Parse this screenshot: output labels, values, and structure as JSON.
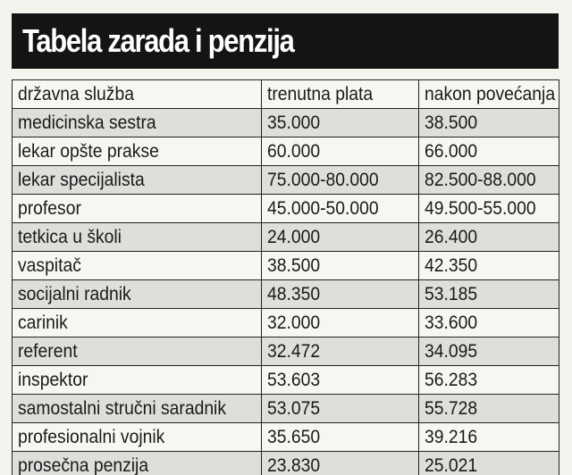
{
  "title": "Tabela zarada i penzija",
  "table": {
    "headers": [
      "državna služba",
      "trenutna plata",
      "nakon povećanja"
    ],
    "rows": [
      [
        "medicinska sestra",
        "35.000",
        "38.500"
      ],
      [
        "lekar opšte prakse",
        "60.000",
        "66.000"
      ],
      [
        "lekar specijalista",
        "75.000-80.000",
        "82.500-88.000"
      ],
      [
        "profesor",
        "45.000-50.000",
        "49.500-55.000"
      ],
      [
        "tetkica u školi",
        "24.000",
        "26.400"
      ],
      [
        "vaspitač",
        "38.500",
        "42.350"
      ],
      [
        "socijalni radnik",
        "48.350",
        "53.185"
      ],
      [
        "carinik",
        "32.000",
        "33.600"
      ],
      [
        "referent",
        "32.472",
        "34.095"
      ],
      [
        "inspektor",
        "53.603",
        "56.283"
      ],
      [
        "samostalni stručni saradnik",
        "53.075",
        "55.728"
      ],
      [
        "profesionalni vojnik",
        "35.650",
        "39.216"
      ],
      [
        "prosečna penzija",
        "23.830",
        "25.021"
      ]
    ]
  },
  "colors": {
    "title_background": "#141414",
    "title_text": "#ffffff",
    "row_light": "#f7f7f2",
    "row_shaded": "#dededa",
    "border": "#222222"
  }
}
